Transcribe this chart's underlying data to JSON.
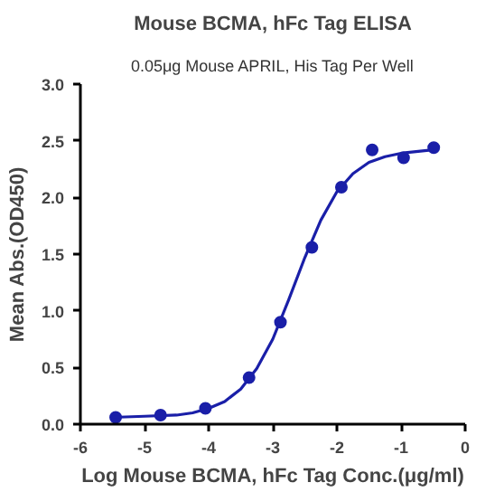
{
  "chart_data": {
    "type": "scatter",
    "title": "Mouse BCMA, hFc Tag ELISA",
    "subtitle": "0.05μg Mouse APRIL, His Tag Per Well",
    "xlabel": "Log Mouse BCMA, hFc Tag Conc.(μg/ml)",
    "ylabel": "Mean Abs.(OD450)",
    "series": [
      {
        "color": "#1a1fa8",
        "x": [
          -5.45,
          -4.75,
          -4.05,
          -3.37,
          -2.88,
          -2.39,
          -1.93,
          -1.45,
          -0.96,
          -0.49
        ],
        "values": [
          0.06,
          0.08,
          0.14,
          0.41,
          0.9,
          1.56,
          2.09,
          2.42,
          2.35,
          2.44
        ]
      },
      {
        "type": "line",
        "marker": "none",
        "color": "#1a1fa8",
        "x": [
          -5.5,
          -5.0,
          -4.5,
          -4.25,
          -4.0,
          -3.75,
          -3.5,
          -3.25,
          -3.0,
          -2.75,
          -2.5,
          -2.25,
          -2.0,
          -1.75,
          -1.5,
          -1.25,
          -1.0,
          -0.5
        ],
        "values": [
          0.06,
          0.07,
          0.08,
          0.1,
          0.14,
          0.2,
          0.31,
          0.49,
          0.75,
          1.1,
          1.47,
          1.8,
          2.05,
          2.21,
          2.31,
          2.36,
          2.39,
          2.42
        ]
      }
    ],
    "marker": "circle",
    "line_style": "solid",
    "grid": false,
    "xlim": [
      -6,
      0
    ],
    "xticks": [
      -6,
      -5,
      -4,
      -3,
      -2,
      -1,
      0
    ],
    "ylim": [
      0,
      3.0
    ],
    "yticks": [
      {
        "value": 0,
        "label": "0.0"
      },
      {
        "value": 0.5,
        "label": "0.5"
      },
      {
        "value": 1,
        "label": "1.0"
      },
      {
        "value": 1.5,
        "label": "1.5"
      },
      {
        "value": 2,
        "label": "2.0"
      },
      {
        "value": 2.5,
        "label": "2.5"
      },
      {
        "value": 3,
        "label": "3.0"
      }
    ]
  }
}
